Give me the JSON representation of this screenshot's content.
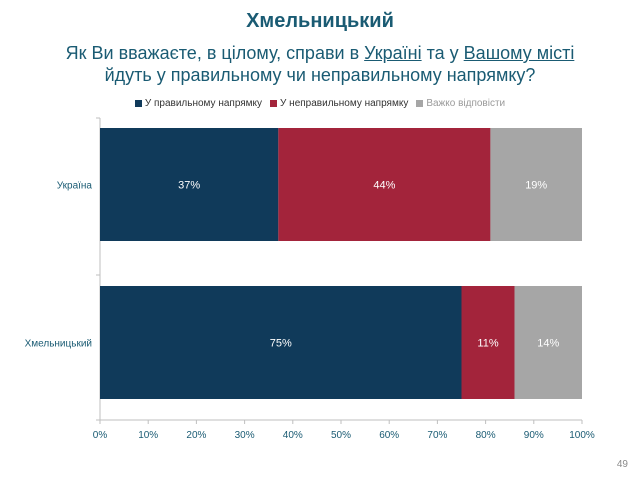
{
  "page": {
    "title": "Хмельницький",
    "question": {
      "part1": "Як Ви вважаєте, в цілому, справи в ",
      "link1": "Україні",
      "part2": " та у ",
      "link2": "Вашому місті",
      "part3": "йдуть у правильному чи неправильному напрямку?"
    },
    "page_number": "49"
  },
  "chart_data": {
    "type": "bar",
    "orientation": "horizontal",
    "stacked": true,
    "categories": [
      "Україна",
      "Хмельницький"
    ],
    "series": [
      {
        "name": "У правильному напрямку",
        "color": "#103a5a",
        "values": [
          37,
          75
        ],
        "labels": [
          "37%",
          "75%"
        ]
      },
      {
        "name": "У неправильному напрямку",
        "color": "#a3243b",
        "values": [
          44,
          11
        ],
        "labels": [
          "44%",
          "11%"
        ]
      },
      {
        "name": "Важко відповісти",
        "color": "#a6a6a6",
        "values": [
          19,
          14
        ],
        "labels": [
          "19%",
          "14%"
        ]
      }
    ],
    "xlim": [
      0,
      100
    ],
    "xticks": [
      "0%",
      "10%",
      "20%",
      "30%",
      "40%",
      "50%",
      "60%",
      "70%",
      "80%",
      "90%",
      "100%"
    ],
    "legend_position": "top",
    "grid": false
  }
}
